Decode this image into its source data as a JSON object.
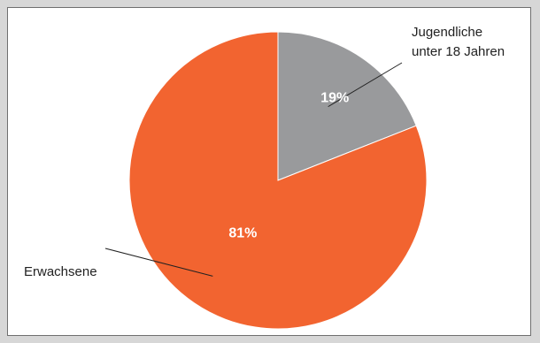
{
  "chart_data": {
    "type": "pie",
    "slices": [
      {
        "label": "Jugendliche unter 18 Jahren",
        "label_lines": [
          "Jugendliche",
          "unter 18 Jahren"
        ],
        "value": 19,
        "value_label": "19%",
        "color": "#999a9c"
      },
      {
        "label": "Erwachsene",
        "label_lines": [
          "Erwachsene"
        ],
        "value": 81,
        "value_label": "81%",
        "color": "#f26430"
      }
    ],
    "start_angle": "12 o'clock",
    "direction": "clockwise",
    "legend": "none",
    "title": ""
  }
}
